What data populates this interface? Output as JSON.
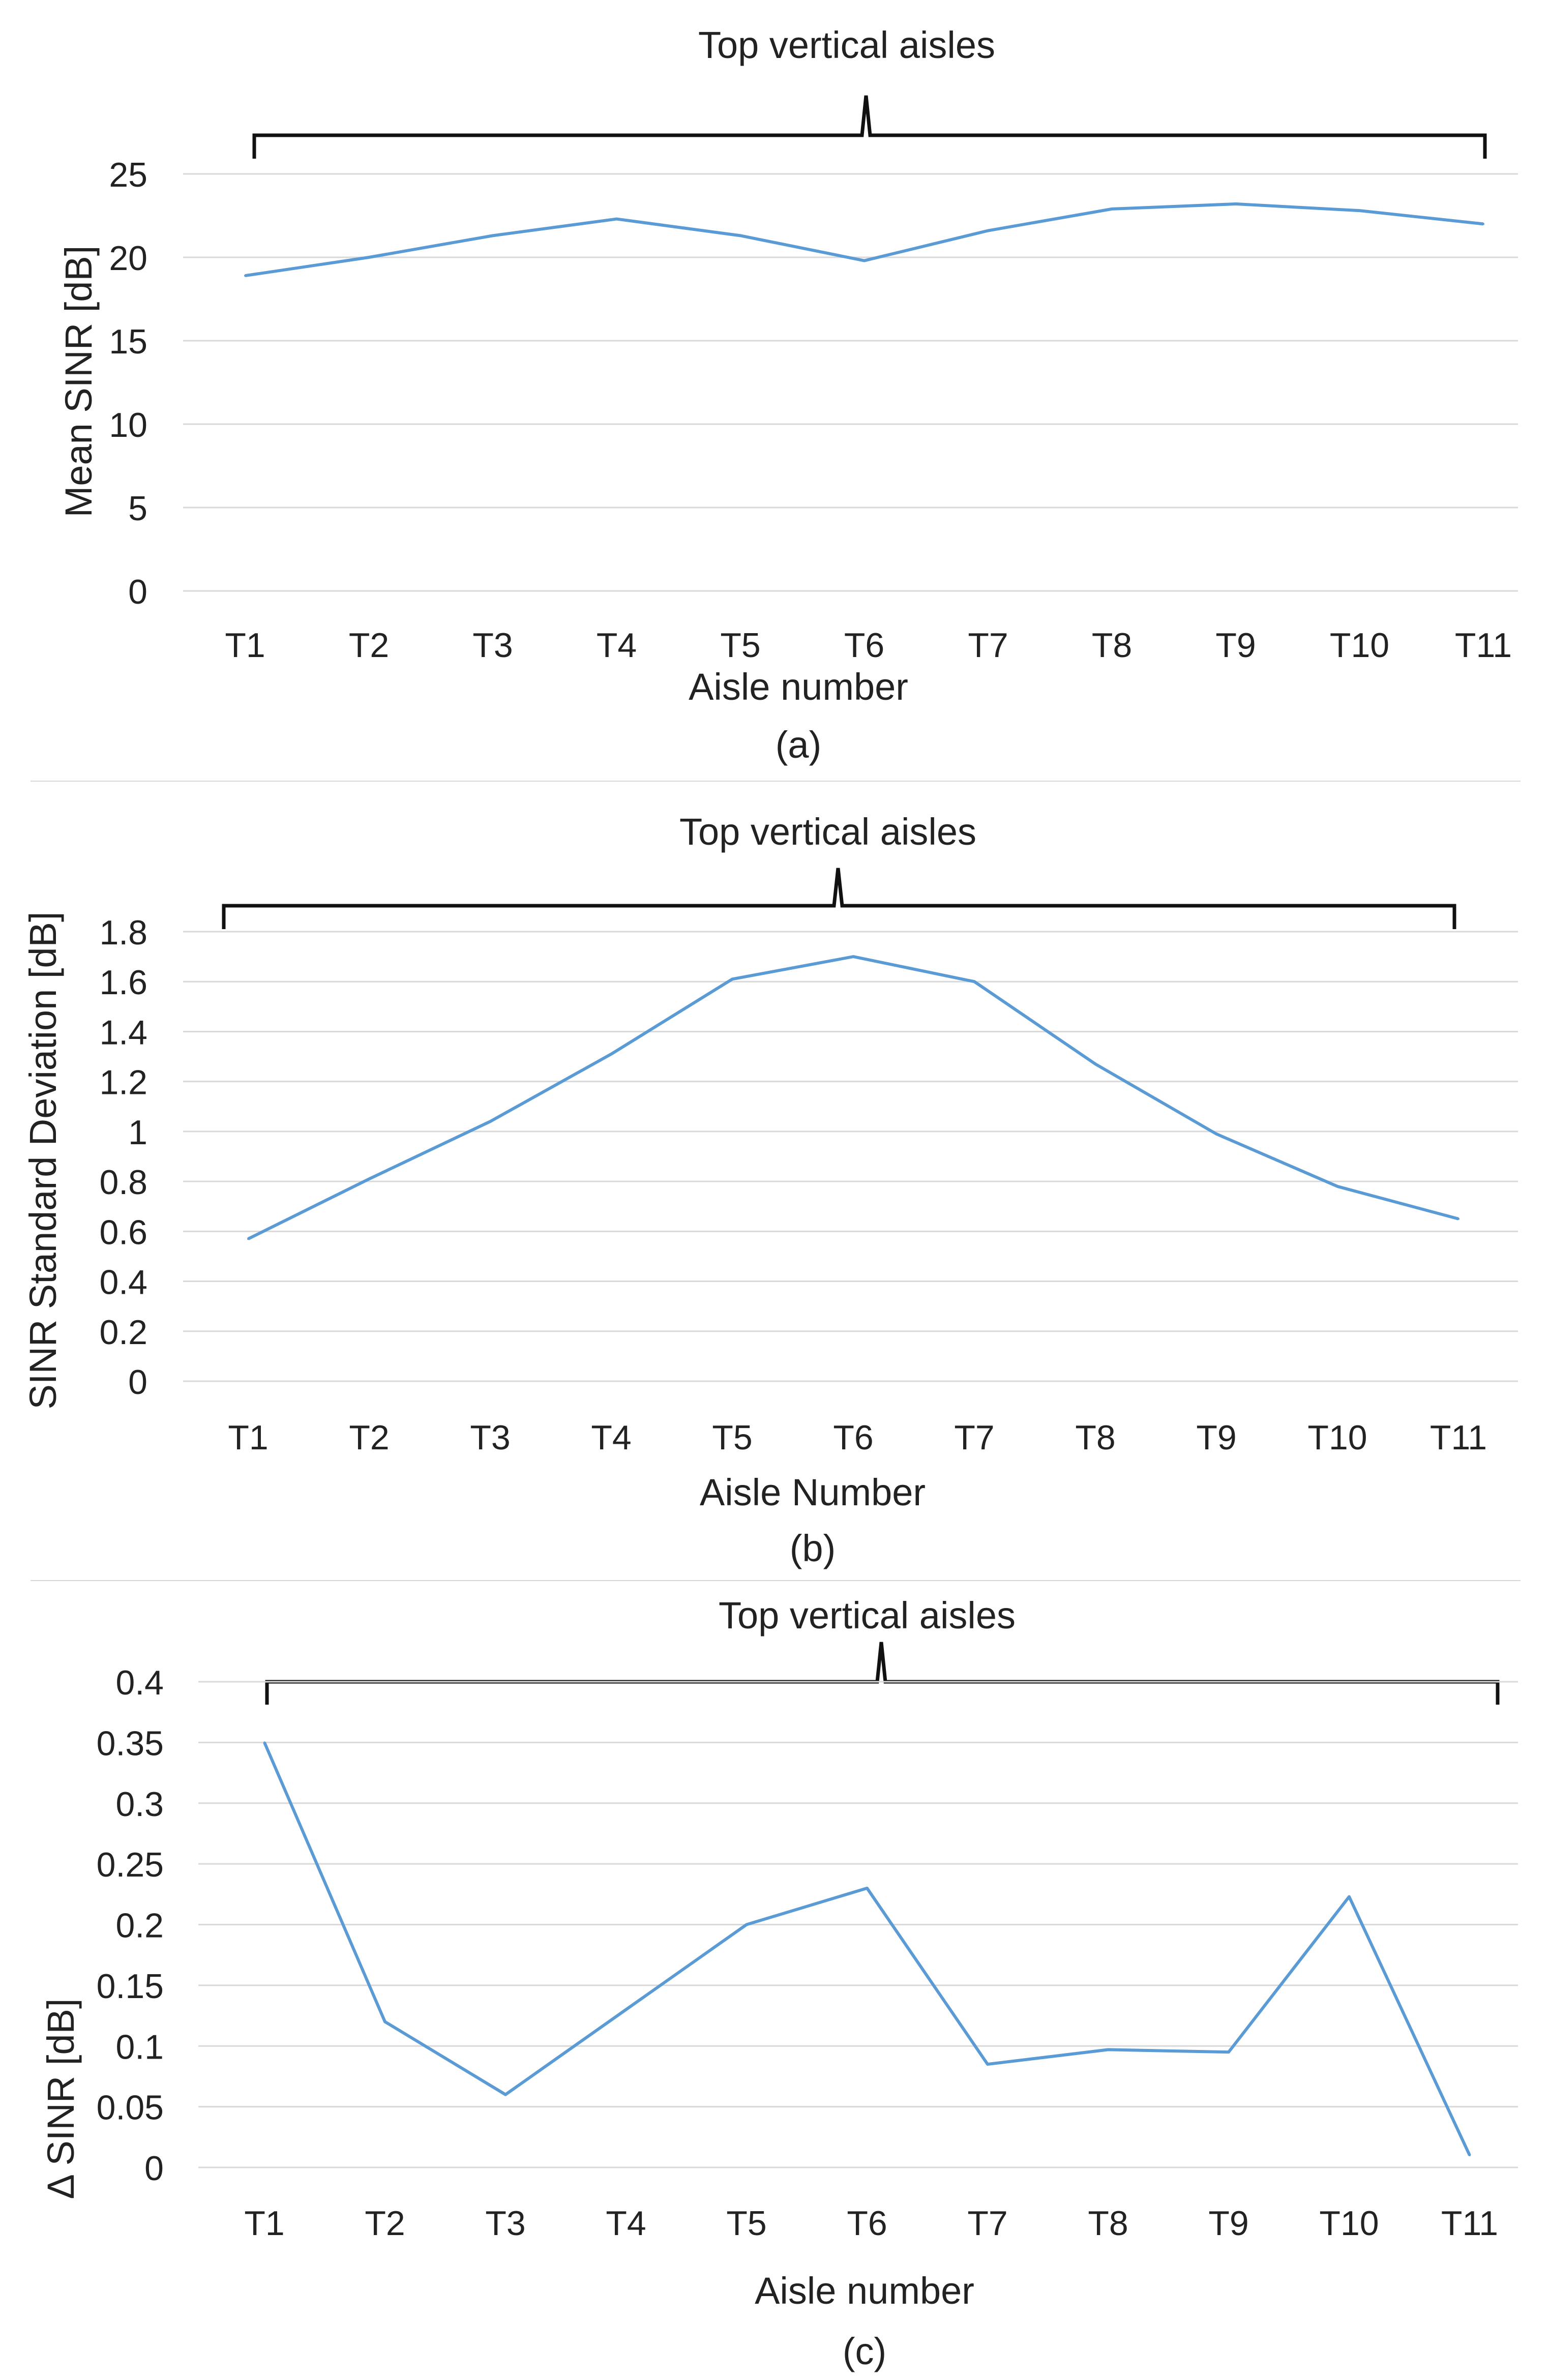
{
  "chart_data": [
    {
      "id": "a",
      "type": "line",
      "title": "Top vertical aisles",
      "caption": "(a)",
      "xlabel": "Aisle number",
      "ylabel": "Mean SINR [dB]",
      "categories": [
        "T1",
        "T2",
        "T3",
        "T4",
        "T5",
        "T6",
        "T7",
        "T8",
        "T9",
        "T10",
        "T11"
      ],
      "ylim": [
        0,
        25
      ],
      "yticks": [
        0,
        5,
        10,
        15,
        20,
        25
      ],
      "ytick_labels": [
        "0",
        "5",
        "10",
        "15",
        "20",
        "25"
      ],
      "grid": true,
      "series": [
        {
          "name": "Mean SINR",
          "values": [
            18.9,
            20.0,
            21.3,
            22.3,
            21.3,
            19.8,
            21.6,
            22.9,
            23.2,
            22.8,
            22.0
          ]
        }
      ],
      "line_color": "#5b9bd5"
    },
    {
      "id": "b",
      "type": "line",
      "title": "Top vertical aisles",
      "caption": "(b)",
      "xlabel": "Aisle Number",
      "ylabel": "SINR Standard Deviation [dB]",
      "categories": [
        "T1",
        "T2",
        "T3",
        "T4",
        "T5",
        "T6",
        "T7",
        "T8",
        "T9",
        "T10",
        "T11"
      ],
      "ylim": [
        0,
        1.8
      ],
      "yticks": [
        0,
        0.2,
        0.4,
        0.6,
        0.8,
        1.0,
        1.2,
        1.4,
        1.6,
        1.8
      ],
      "ytick_labels": [
        "0",
        "0.2",
        "0.4",
        "0.6",
        "0.8",
        "1",
        "1.2",
        "1.4",
        "1.6",
        "1.8"
      ],
      "grid": true,
      "series": [
        {
          "name": "SINR Standard Deviation",
          "values": [
            0.57,
            0.81,
            1.04,
            1.31,
            1.61,
            1.7,
            1.6,
            1.27,
            0.99,
            0.78,
            0.65
          ]
        }
      ],
      "line_color": "#5b9bd5"
    },
    {
      "id": "c",
      "type": "line",
      "title": "Top vertical aisles",
      "caption": "(c)",
      "xlabel": "Aisle number",
      "ylabel": "Δ SINR [dB]",
      "categories": [
        "T1",
        "T2",
        "T3",
        "T4",
        "T5",
        "T6",
        "T7",
        "T8",
        "T9",
        "T10",
        "T11"
      ],
      "ylim": [
        0,
        0.4
      ],
      "yticks": [
        0,
        0.05,
        0.1,
        0.15,
        0.2,
        0.25,
        0.3,
        0.35,
        0.4
      ],
      "ytick_labels": [
        "0",
        "0.05",
        "0.1",
        "0.15",
        "0.2",
        "0.25",
        "0.3",
        "0.35",
        "0.4"
      ],
      "grid": true,
      "series": [
        {
          "name": "Δ SINR",
          "values": [
            0.35,
            0.12,
            0.06,
            0.13,
            0.2,
            0.23,
            0.085,
            0.097,
            0.095,
            0.223,
            0.01
          ]
        }
      ],
      "line_color": "#5b9bd5"
    }
  ]
}
